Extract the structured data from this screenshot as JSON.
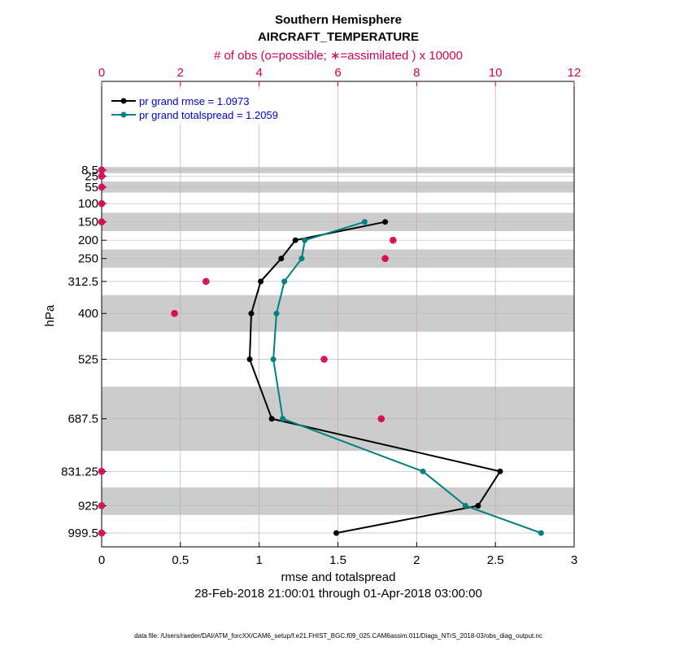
{
  "chart_data": {
    "type": "line",
    "title": "Southern Hemisphere",
    "subtitle": "AIRCRAFT_TEMPERATURE",
    "top_axis_label": "# of obs (o=possible; ∗=assimilated ) x 10000",
    "xlabel": "rmse and totalspread",
    "ylabel": "hPa",
    "date_range": "28-Feb-2018 21:00:01 through 01-Apr-2018 03:00:00",
    "footer": "data file: /Users/raeder/DAI/ATM_forcXX/CAM6_setup/f.e21.FHIST_BGC.f09_025.CAM6assim.011/Diags_NTrS_2018-03/obs_diag_output.nc",
    "xlim": [
      0,
      3
    ],
    "x_ticks": [
      "0",
      "0.5",
      "1",
      "1.5",
      "2",
      "2.5",
      "3"
    ],
    "top_xlim": [
      0,
      12
    ],
    "top_ticks": [
      "0",
      "2",
      "4",
      "6",
      "8",
      "10",
      "12"
    ],
    "levels": [
      "8.5",
      "25",
      "55",
      "100",
      "150",
      "200",
      "250",
      "312.5",
      "400",
      "525",
      "687.5",
      "831.25",
      "925",
      "999.5"
    ],
    "level_values": [
      8.5,
      25,
      55,
      100,
      150,
      200,
      250,
      312.5,
      400,
      525,
      687.5,
      831.25,
      925,
      999.5
    ],
    "shaded_bands": [
      [
        0,
        17
      ],
      [
        40,
        70
      ],
      [
        125,
        175
      ],
      [
        225,
        275
      ],
      [
        350,
        450
      ],
      [
        600,
        775
      ],
      [
        875,
        950
      ]
    ],
    "series": [
      {
        "name": "pr grand rmse = 1.0973",
        "color": "#000000",
        "points": [
          [
            1.8,
            150
          ],
          [
            1.23,
            200
          ],
          [
            1.14,
            250
          ],
          [
            1.01,
            312.5
          ],
          [
            0.95,
            400
          ],
          [
            0.94,
            525
          ],
          [
            1.08,
            687.5
          ],
          [
            2.53,
            831.25
          ],
          [
            2.39,
            925
          ],
          [
            1.49,
            999.5
          ]
        ]
      },
      {
        "name": "pr grand totalspread = 1.2059",
        "color": "#008080",
        "points": [
          [
            1.67,
            150
          ],
          [
            1.29,
            200
          ],
          [
            1.27,
            250
          ],
          [
            1.16,
            312.5
          ],
          [
            1.11,
            400
          ],
          [
            1.09,
            525
          ],
          [
            1.15,
            687.5
          ],
          [
            2.04,
            831.25
          ],
          [
            2.31,
            925
          ],
          [
            2.79,
            999.5
          ]
        ]
      }
    ],
    "obs_possible": [
      [
        0,
        8.5
      ],
      [
        0,
        25
      ],
      [
        0,
        55
      ],
      [
        0,
        100
      ],
      [
        0,
        150
      ],
      [
        7.4,
        200
      ],
      [
        7.2,
        250
      ],
      [
        2.65,
        312.5
      ],
      [
        1.85,
        400
      ],
      [
        5.65,
        525
      ],
      [
        7.1,
        687.5
      ],
      [
        0,
        831.25
      ],
      [
        0,
        925
      ],
      [
        0,
        999.5
      ]
    ],
    "obs_assimilated": [
      [
        0,
        8.5
      ],
      [
        0,
        25
      ],
      [
        0,
        55
      ],
      [
        0,
        100
      ],
      [
        0,
        150
      ],
      [
        7.4,
        200
      ],
      [
        7.2,
        250
      ],
      [
        2.65,
        312.5
      ],
      [
        1.85,
        400
      ],
      [
        5.65,
        525
      ],
      [
        7.1,
        687.5
      ],
      [
        0,
        831.25
      ],
      [
        0,
        925
      ],
      [
        0,
        999.5
      ]
    ],
    "obs_color": "#d6004f",
    "band_color": "#cccccc",
    "grid": true,
    "legend_position": "top-left"
  }
}
